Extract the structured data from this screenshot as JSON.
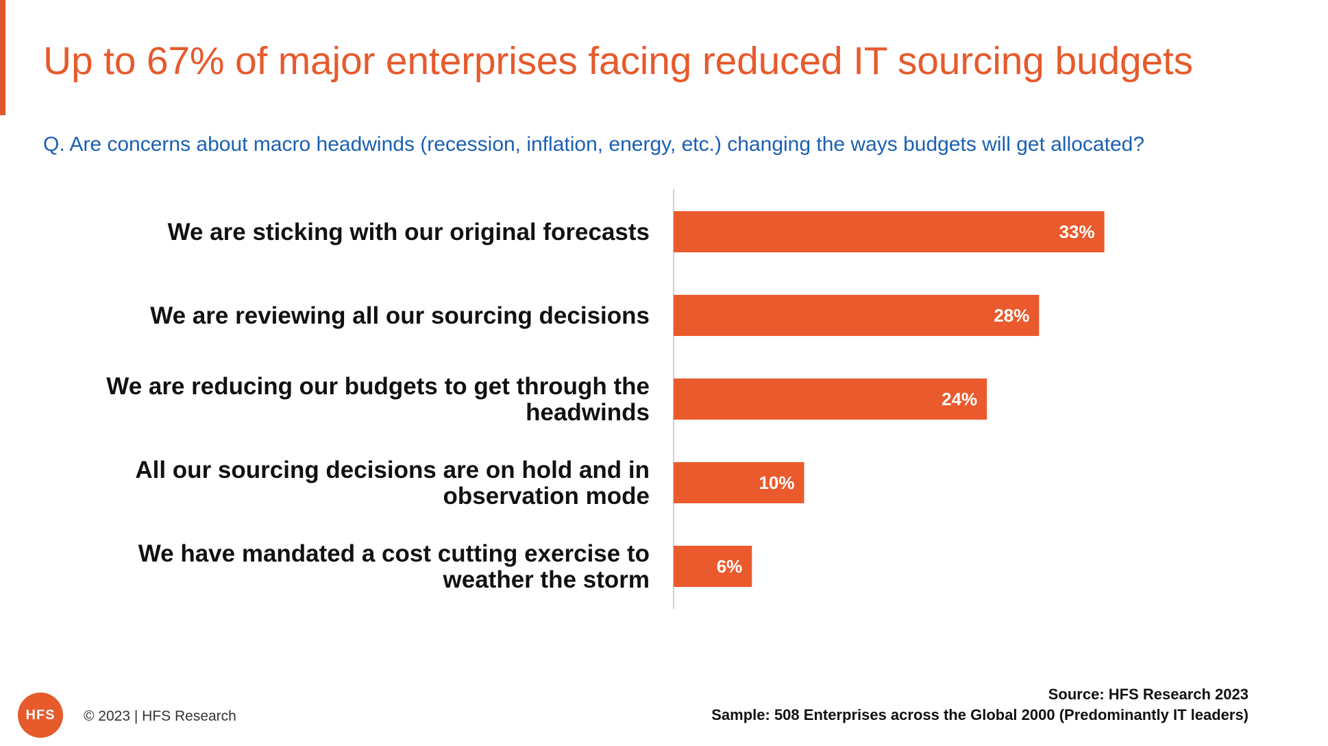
{
  "header": {
    "title": "Up to 67% of major enterprises facing reduced IT sourcing budgets",
    "question": "Q. Are concerns about macro headwinds (recession, inflation, energy, etc.) changing the ways budgets will get allocated?"
  },
  "chart_data": {
    "type": "bar",
    "orientation": "horizontal",
    "categories": [
      [
        "We are sticking with our original forecasts"
      ],
      [
        "We are reviewing all our sourcing decisions"
      ],
      [
        "We are reducing our budgets to get through the",
        "headwinds"
      ],
      [
        "All our sourcing decisions are on hold and in",
        "observation mode"
      ],
      [
        "We have mandated a cost cutting exercise to",
        "weather the storm"
      ]
    ],
    "values": [
      33,
      28,
      24,
      10,
      6
    ],
    "value_labels": [
      "33%",
      "28%",
      "24%",
      "10%",
      "6%"
    ],
    "unit": "%",
    "xlim": [
      0,
      40
    ],
    "bar_color": "#ea5a2c",
    "grid": false,
    "legend": "none"
  },
  "footer": {
    "logo_text": "HFS",
    "copyright": "© 2023 | HFS Research",
    "source": "Source:  HFS Research 2023",
    "sample": "Sample: 508 Enterprises across the Global 2000 (Predominantly IT leaders)"
  },
  "colors": {
    "accent": "#e65a2c",
    "question": "#1a5fb4",
    "text": "#111111"
  }
}
